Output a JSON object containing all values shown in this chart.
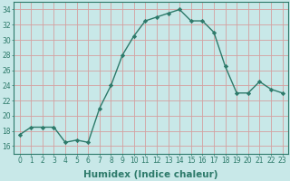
{
  "x": [
    0,
    1,
    2,
    3,
    4,
    5,
    6,
    7,
    8,
    9,
    10,
    11,
    12,
    13,
    14,
    15,
    16,
    17,
    18,
    19,
    20,
    21,
    22,
    23
  ],
  "y": [
    17.5,
    18.5,
    18.5,
    18.5,
    16.5,
    16.8,
    16.5,
    21.0,
    24.0,
    28.0,
    30.5,
    32.5,
    33.0,
    33.5,
    34.0,
    32.5,
    32.5,
    31.0,
    26.5,
    23.0,
    23.0,
    24.5,
    23.5,
    23.0
  ],
  "line_color": "#2d7a6a",
  "marker": "D",
  "marker_size": 2.2,
  "bg_color": "#c8e8e8",
  "grid_color": "#d4a0a0",
  "xlabel": "Humidex (Indice chaleur)",
  "ylim": [
    15,
    35
  ],
  "xlim": [
    -0.5,
    23.5
  ],
  "yticks": [
    16,
    18,
    20,
    22,
    24,
    26,
    28,
    30,
    32,
    34
  ],
  "xticks": [
    0,
    1,
    2,
    3,
    4,
    5,
    6,
    7,
    8,
    9,
    10,
    11,
    12,
    13,
    14,
    15,
    16,
    17,
    18,
    19,
    20,
    21,
    22,
    23
  ],
  "tick_fontsize": 5.5,
  "xlabel_fontsize": 7.5,
  "line_width": 1.0
}
